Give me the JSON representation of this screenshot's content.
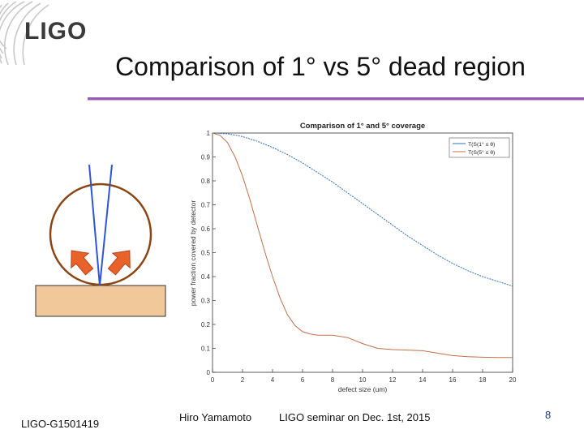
{
  "logo": {
    "text": "LIGO"
  },
  "slide": {
    "title": "Comparison of 1° vs 5° dead region"
  },
  "footer": {
    "doc_id": "LIGO-G1501419",
    "author": "Hiro Yamamoto",
    "venue": "LIGO seminar on Dec. 1st, 2015",
    "page": "8"
  },
  "colors": {
    "series1": "#2f6fbf",
    "series2": "#c0704a",
    "rule": "#9b59b6",
    "circle": "#8b4513",
    "arrow": "#e8622a",
    "substrate": "#f0c89a"
  },
  "chart_data": {
    "type": "line",
    "title": "Comparison of 1° and 5° coverage",
    "xlabel": "defect size (um)",
    "ylabel": "power fraction covered by detector",
    "xlim": [
      0,
      20
    ],
    "ylim": [
      0,
      1
    ],
    "xticks": [
      0,
      2,
      4,
      6,
      8,
      10,
      12,
      14,
      16,
      18,
      20
    ],
    "yticks": [
      0,
      0.1,
      0.2,
      0.3,
      0.4,
      0.5,
      0.6,
      0.7,
      0.8,
      0.9,
      1
    ],
    "legend_position": "top-right",
    "series": [
      {
        "name": "T(S(1° ≤ θ)",
        "x": [
          0,
          1,
          2,
          3,
          4,
          5,
          6,
          7,
          8,
          9,
          10,
          11,
          12,
          13,
          14,
          15,
          16,
          17,
          18,
          19,
          20
        ],
        "y": [
          1.0,
          0.997,
          0.985,
          0.965,
          0.94,
          0.91,
          0.875,
          0.835,
          0.795,
          0.75,
          0.705,
          0.66,
          0.615,
          0.57,
          0.53,
          0.49,
          0.455,
          0.425,
          0.4,
          0.38,
          0.36
        ]
      },
      {
        "name": "T(S(5° ≤ θ)",
        "x": [
          0,
          0.5,
          1,
          1.5,
          2,
          2.5,
          3,
          3.5,
          4,
          4.5,
          5,
          5.5,
          6,
          6.5,
          7,
          8,
          9,
          10,
          11,
          12,
          13,
          14,
          15,
          16,
          17,
          18,
          19,
          20
        ],
        "y": [
          1.0,
          0.99,
          0.96,
          0.9,
          0.82,
          0.72,
          0.61,
          0.5,
          0.4,
          0.31,
          0.24,
          0.195,
          0.17,
          0.16,
          0.155,
          0.155,
          0.145,
          0.12,
          0.1,
          0.095,
          0.093,
          0.09,
          0.08,
          0.07,
          0.065,
          0.063,
          0.062,
          0.062
        ]
      }
    ]
  }
}
